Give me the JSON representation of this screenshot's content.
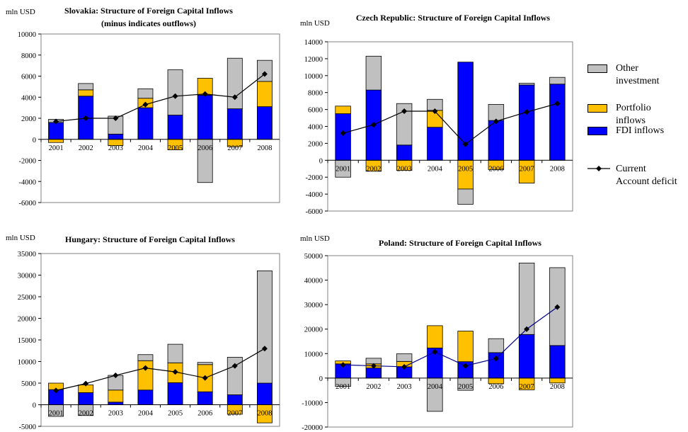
{
  "chart_data": [
    {
      "type": "bar",
      "title": "Slovakia: Structure of Foreign Capital Inflows",
      "subtitle": "(minus indicates outflows)",
      "ylabel": "mln USD",
      "ylim": [
        -6000,
        10000
      ],
      "yticks": [
        -6000,
        -4000,
        -2000,
        0,
        2000,
        4000,
        6000,
        8000,
        10000
      ],
      "categories": [
        "2001",
        "2002",
        "2003",
        "2004",
        "2005",
        "2006",
        "2007",
        "2008"
      ],
      "series": [
        {
          "name": "FDI inflows",
          "values": [
            1600,
            4100,
            500,
            3000,
            2300,
            4200,
            2900,
            3100
          ]
        },
        {
          "name": "Portfolio inflows",
          "values": [
            -300,
            600,
            -600,
            900,
            -1000,
            1600,
            -700,
            2400
          ]
        },
        {
          "name": "Other investment",
          "values": [
            300,
            600,
            1700,
            900,
            4300,
            -4100,
            4800,
            2000
          ]
        },
        {
          "name": "Current Account deficit",
          "values": [
            1700,
            2000,
            2000,
            3300,
            4100,
            4300,
            4000,
            6200
          ]
        }
      ]
    },
    {
      "type": "bar",
      "title": "Czech Republic: Structure of Foreign Capital Inflows",
      "ylabel": "mln USD",
      "ylim": [
        -6000,
        14000
      ],
      "yticks": [
        -6000,
        -4000,
        -2000,
        0,
        2000,
        4000,
        6000,
        8000,
        10000,
        12000,
        14000
      ],
      "categories": [
        "2001",
        "2002",
        "2003",
        "2004",
        "2005",
        "2006",
        "2007",
        "2008"
      ],
      "series": [
        {
          "name": "FDI inflows",
          "values": [
            5500,
            8300,
            1800,
            3900,
            11600,
            4700,
            8900,
            9000
          ]
        },
        {
          "name": "Portfolio inflows",
          "values": [
            900,
            -1300,
            -1200,
            2000,
            -3400,
            -1100,
            -2700,
            0
          ]
        },
        {
          "name": "Other investment",
          "values": [
            -2000,
            4000,
            4900,
            1300,
            -1800,
            1900,
            200,
            800
          ]
        },
        {
          "name": "Current Account deficit",
          "values": [
            3200,
            4200,
            5800,
            5800,
            1900,
            4600,
            5700,
            6700
          ]
        }
      ]
    },
    {
      "type": "bar",
      "title": "Hungary: Structure of Foreign Capital Inflows",
      "ylabel": "mln USD",
      "ylim": [
        -5000,
        35000
      ],
      "yticks": [
        -5000,
        0,
        5000,
        10000,
        15000,
        20000,
        25000,
        30000,
        35000
      ],
      "categories": [
        "2001",
        "2002",
        "2003",
        "2004",
        "2005",
        "2006",
        "2007",
        "2008"
      ],
      "series": [
        {
          "name": "FDI inflows",
          "values": [
            3500,
            2800,
            600,
            3400,
            5100,
            3000,
            2300,
            5000
          ]
        },
        {
          "name": "Portfolio inflows",
          "values": [
            1500,
            1800,
            2800,
            6800,
            4600,
            6300,
            -2200,
            -4200
          ]
        },
        {
          "name": "Other investment",
          "values": [
            -2700,
            -2500,
            3400,
            1400,
            4300,
            500,
            8700,
            26000
          ]
        },
        {
          "name": "Current Account deficit",
          "values": [
            3300,
            4900,
            6800,
            8500,
            7600,
            6200,
            9000,
            13000
          ]
        }
      ]
    },
    {
      "type": "bar",
      "title": "Poland: Structure of Foreign Capital Inflows",
      "ylabel": "mln USD",
      "ylim": [
        -20000,
        50000
      ],
      "yticks": [
        -20000,
        -10000,
        0,
        10000,
        20000,
        30000,
        40000,
        50000
      ],
      "categories": [
        "2001",
        "2002",
        "2003",
        "2004",
        "2005",
        "2006",
        "2007",
        "2008"
      ],
      "series": [
        {
          "name": "FDI inflows",
          "values": [
            5800,
            4100,
            4600,
            12300,
            6700,
            10400,
            17800,
            13300
          ]
        },
        {
          "name": "Portfolio inflows",
          "values": [
            1200,
            1700,
            2200,
            9100,
            12500,
            -2300,
            -4800,
            -2000
          ]
        },
        {
          "name": "Other investment",
          "values": [
            -3400,
            2300,
            3100,
            -13600,
            -5000,
            5700,
            29200,
            31800
          ]
        },
        {
          "name": "Current Account deficit",
          "values": [
            5400,
            5000,
            4600,
            10700,
            5000,
            8000,
            20000,
            29000
          ]
        }
      ]
    }
  ],
  "legend": {
    "items": [
      {
        "label_line1": "Other",
        "label_line2": "investment",
        "color": "#c0c0c0"
      },
      {
        "label_line1": "Portfolio",
        "label_line2": "inflows",
        "color": "#ffc000"
      },
      {
        "label_line1": "FDI inflows",
        "label_line2": "",
        "color": "#0000ff"
      },
      {
        "label_line1": "Current",
        "label_line2": "Account deficit",
        "color": "#000000"
      }
    ]
  },
  "colors": {
    "other": "#c0c0c0",
    "portfolio": "#ffc000",
    "fdi": "#0000ff",
    "line": "#000000",
    "line_poland": "#00008b"
  }
}
